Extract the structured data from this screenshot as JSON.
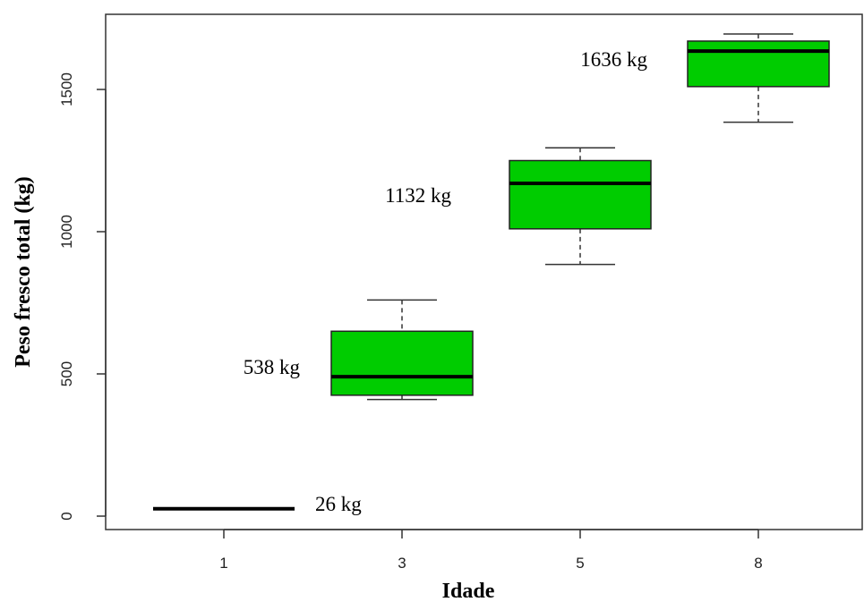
{
  "chart_data": {
    "type": "boxplot",
    "xlabel": "Idade",
    "ylabel": "Peso fresco total (kg)",
    "ylim": [
      -50,
      1800
    ],
    "yticks": [
      0,
      500,
      1000,
      1500
    ],
    "categories": [
      "1",
      "3",
      "5",
      "8"
    ],
    "boxes": [
      {
        "category": "1",
        "whisker_low": 26,
        "q1": 26,
        "median": 26,
        "q3": 26,
        "whisker_high": 26,
        "label": "26 kg"
      },
      {
        "category": "3",
        "whisker_low": 410,
        "q1": 425,
        "median": 490,
        "q3": 650,
        "whisker_high": 760,
        "label": "538 kg"
      },
      {
        "category": "5",
        "whisker_low": 885,
        "q1": 1010,
        "median": 1170,
        "q3": 1250,
        "whisker_high": 1295,
        "label": "1132 kg"
      },
      {
        "category": "8",
        "whisker_low": 1385,
        "q1": 1510,
        "median": 1635,
        "q3": 1670,
        "whisker_high": 1695,
        "label": "1636 kg"
      }
    ],
    "box_color": "#00cc00",
    "grid": false,
    "legend": "none"
  }
}
